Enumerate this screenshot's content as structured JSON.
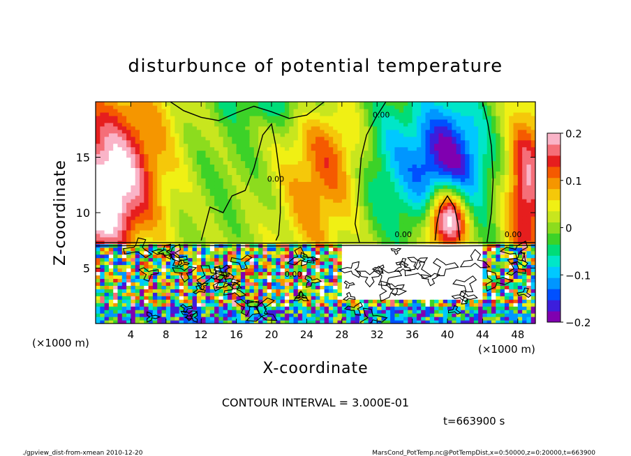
{
  "chart_data": {
    "type": "heatmap",
    "title": "disturbunce of potential temperature",
    "xlabel": "X-coordinate",
    "ylabel": "Z-coordinate",
    "x_unit": "(×1000 m)",
    "y_unit": "(×1000 m)",
    "xlim": [
      0,
      50
    ],
    "ylim": [
      0,
      20
    ],
    "x_ticks": [
      4,
      8,
      12,
      16,
      20,
      24,
      28,
      32,
      36,
      40,
      44,
      48
    ],
    "y_ticks": [
      5,
      10,
      15
    ],
    "colorbar": {
      "vmin": -0.2,
      "vmax": 0.2,
      "tick_values": [
        0.2,
        0.1,
        0,
        -0.1,
        -0.2
      ],
      "tick_labels": [
        "0.2",
        "0.1",
        "0",
        "−0.1",
        "−0.2"
      ]
    },
    "contour_label": "0.00",
    "contour_interval_text": "CONTOUR INTERVAL = 3.000E-01",
    "time_text": "t=663900 s",
    "footer_left": "./gpview_dist-from-xmean  2010-12-20",
    "footer_right": "MarsCond_PotTemp.nc@PotTempDist,x=0:50000,z=0:20000,t=663900"
  }
}
